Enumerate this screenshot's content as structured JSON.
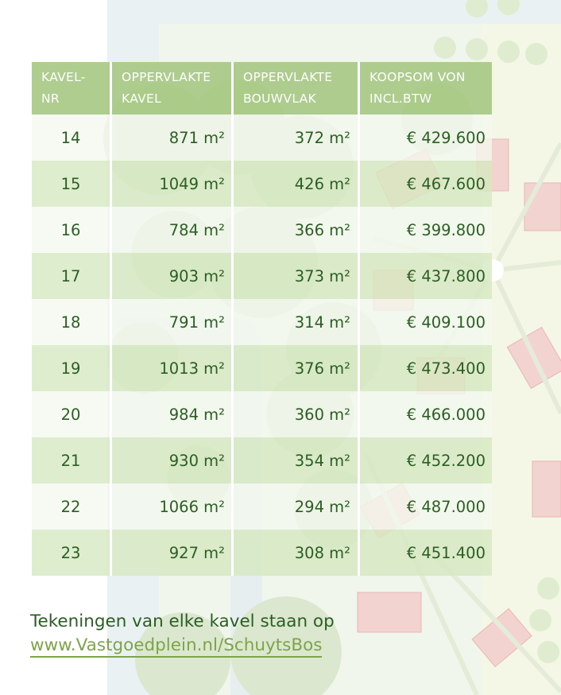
{
  "table": {
    "headers": [
      [
        "KAVEL-",
        "NR"
      ],
      [
        "OPPERVLAKTE",
        "KAVEL"
      ],
      [
        "OPPERVLAKTE",
        "BOUWVLAK"
      ],
      [
        "KOOPSOM VON",
        "INCL.BTW"
      ]
    ],
    "rows": [
      [
        "14",
        "871 m²",
        "372 m²",
        "€ 429.600"
      ],
      [
        "15",
        "1049 m²",
        "426 m²",
        "€ 467.600"
      ],
      [
        "16",
        "784 m²",
        "366 m²",
        "€ 399.800"
      ],
      [
        "17",
        "903 m²",
        "373 m²",
        "€ 437.800"
      ],
      [
        "18",
        "791 m²",
        "314 m²",
        "€ 409.100"
      ],
      [
        "19",
        "1013 m²",
        "376 m²",
        "€ 473.400"
      ],
      [
        "20",
        "984 m²",
        "360 m²",
        "€ 466.000"
      ],
      [
        "21",
        "930 m²",
        "354 m²",
        "€ 452.200"
      ],
      [
        "22",
        "1066 m²",
        "294 m²",
        "€ 487.000"
      ],
      [
        "23",
        "927 m²",
        "308 m²",
        "€ 451.400"
      ]
    ]
  },
  "footer": {
    "line1": "Tekeningen van elke kavel staan op",
    "link": "www.Vastgoedplein.nl/SchuytsBos"
  },
  "colors": {
    "header_bg": "#a4c680",
    "text_green": "#2b5e22",
    "link_green": "#7ea447"
  }
}
